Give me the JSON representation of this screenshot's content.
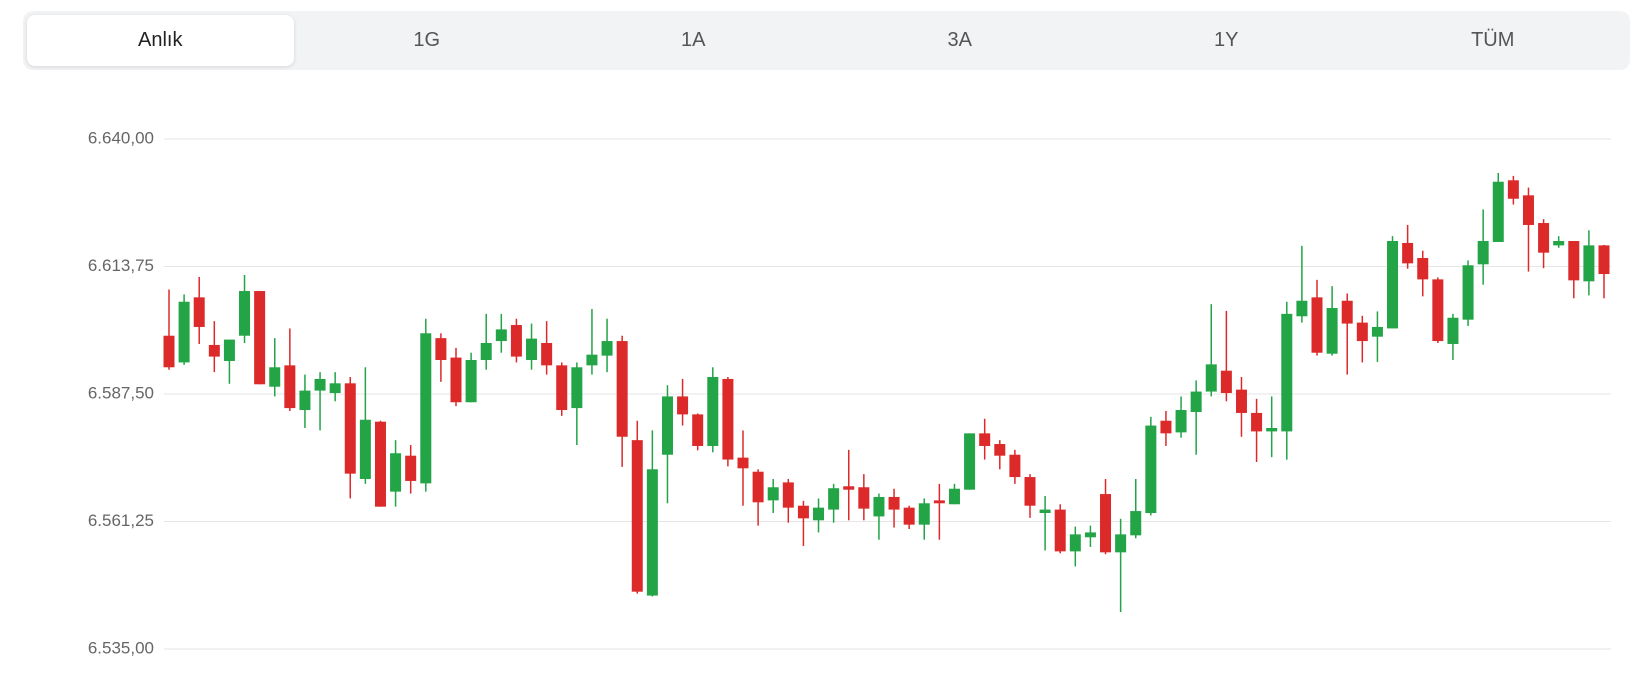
{
  "tabs": [
    "Anlık",
    "1G",
    "1A",
    "3A",
    "1Y",
    "TÜM"
  ],
  "active_tab": 0,
  "chart_data": {
    "type": "candlestick",
    "open": [
      6599.5,
      6594,
      6607.4,
      6597.6,
      6594.3,
      6599.5,
      6608.7,
      6589,
      6593.4,
      6584.2,
      6588.2,
      6587.7,
      6589.7,
      6570,
      6581.8,
      6567.4,
      6574.8,
      6569.1,
      6599,
      6595,
      6585.8,
      6594.5,
      6598.4,
      6601.7,
      6594.5,
      6598,
      6593.4,
      6584.6,
      6593.4,
      6595.4,
      6598.4,
      6578,
      6546,
      6575,
      6587,
      6583.3,
      6576.8,
      6590.6,
      6574.4,
      6571.5,
      6565.6,
      6569.3,
      6564.5,
      6561.5,
      6563.7,
      6568.5,
      6568.3,
      6562.3,
      6566.3,
      6564.1,
      6560.6,
      6565.6,
      6564.8,
      6567.8,
      6579.4,
      6577.2,
      6575,
      6570.4,
      6563,
      6563.7,
      6555.1,
      6558,
      6566.9,
      6554.9,
      6558.4,
      6563,
      6582,
      6579.6,
      6583.8,
      6588,
      6592.3,
      6588.4,
      6583.6,
      6579.8,
      6579.8,
      6603.5,
      6607.4,
      6595.8,
      6606.7,
      6602.2,
      6599.3,
      6601,
      6618.6,
      6615.5,
      6611.1,
      6597.8,
      6602.8,
      6614.2,
      6618.8,
      6631.5,
      6628.4,
      6622.7,
      6618.1,
      6619,
      6610.7,
      6618.1
    ],
    "high": [
      6609,
      6608,
      6611.6,
      6602.5,
      6598.7,
      6612,
      6608.7,
      6599,
      6601,
      6591.5,
      6592,
      6592,
      6591,
      6593,
      6582,
      6578,
      6577,
      6603,
      6600,
      6597,
      6596,
      6604,
      6604,
      6603,
      6602,
      6602.5,
      6594,
      6594,
      6605,
      6603,
      6599.5,
      6582,
      6580,
      6589.3,
      6590.6,
      6583.5,
      6593,
      6591,
      6580,
      6572,
      6570,
      6570,
      6565.5,
      6566,
      6569,
      6576,
      6571,
      6567,
      6568,
      6564.5,
      6566,
      6569,
      6569,
      6579.4,
      6582.4,
      6578,
      6576,
      6571,
      6566.5,
      6564.8,
      6560.2,
      6560.4,
      6570,
      6561.8,
      6570,
      6582.8,
      6584,
      6587,
      6590.3,
      6606,
      6604.6,
      6591,
      6586.5,
      6587,
      6606.5,
      6618,
      6611,
      6609.7,
      6608.2,
      6603.6,
      6604.5,
      6620,
      6622.3,
      6617,
      6611.5,
      6604,
      6615,
      6625.5,
      6633,
      6632.4,
      6630,
      6623.5,
      6620,
      6619,
      6621.2,
      6618.2
    ],
    "low": [
      6592.5,
      6593.5,
      6597.8,
      6592,
      6589.6,
      6598,
      6589.5,
      6587,
      6584,
      6580.5,
      6580,
      6586,
      6566,
      6569,
      6564.3,
      6564.3,
      6567,
      6567.4,
      6590,
      6585,
      6585.8,
      6592.5,
      6596,
      6594,
      6592.5,
      6591.5,
      6583,
      6577,
      6591.5,
      6592,
      6572.5,
      6546.4,
      6545.8,
      6565,
      6581,
      6575.9,
      6575.5,
      6572.6,
      6564.5,
      6560.4,
      6563,
      6561,
      6556.2,
      6559,
      6561,
      6561.5,
      6561.5,
      6557.5,
      6560,
      6559.7,
      6557.5,
      6557.5,
      6564.8,
      6567.8,
      6574,
      6572,
      6569,
      6562,
      6555.3,
      6554.7,
      6552,
      6556,
      6554.5,
      6542.6,
      6557.8,
      6562.5,
      6576.8,
      6578.5,
      6575,
      6587,
      6586,
      6578.7,
      6573.5,
      6574.5,
      6574,
      6602.2,
      6595.4,
      6595.4,
      6591.5,
      6594,
      6594.1,
      6601,
      6613.3,
      6607.6,
      6598,
      6594.5,
      6601.5,
      6610,
      6618.8,
      6626.5,
      6612.7,
      6613.4,
      6617.6,
      6607.2,
      6607.8,
      6607.2
    ],
    "close": [
      6593,
      6606.5,
      6601.3,
      6595.2,
      6598.7,
      6608.7,
      6589.5,
      6593,
      6584.6,
      6588.2,
      6590.6,
      6589.7,
      6571.1,
      6582.2,
      6564.3,
      6575.3,
      6569.6,
      6600,
      6594.5,
      6585.8,
      6594.5,
      6598,
      6600.8,
      6595.2,
      6598.9,
      6593.4,
      6584.2,
      6593,
      6595.6,
      6598.4,
      6578.7,
      6546.8,
      6572,
      6587,
      6583.3,
      6576.8,
      6591,
      6574,
      6572.2,
      6565.2,
      6568.3,
      6564.1,
      6561.9,
      6564.1,
      6568.1,
      6567.8,
      6563.9,
      6566.3,
      6563.7,
      6560.6,
      6565,
      6565,
      6568,
      6579.4,
      6576.8,
      6574.8,
      6570.4,
      6564.5,
      6563.7,
      6555.1,
      6558.6,
      6559,
      6554.9,
      6558.6,
      6563.4,
      6581,
      6579.4,
      6584.2,
      6588,
      6593.6,
      6587.7,
      6583.6,
      6579.8,
      6580.5,
      6604,
      6606.7,
      6596,
      6605.2,
      6602,
      6598.4,
      6601.3,
      6619,
      6614.4,
      6611.1,
      6598.4,
      6603.2,
      6614,
      6619,
      6631.2,
      6627.7,
      6622.3,
      6616.6,
      6619,
      6610.9,
      6618.1,
      6612.2
    ],
    "up_color": "#22a447",
    "down_color": "#dc2a2a",
    "ylim": [
      6535,
      6640
    ],
    "yticks": [
      {
        "value": 6640,
        "label": "6.640,00"
      },
      {
        "value": 6613.75,
        "label": "6.613,75"
      },
      {
        "value": 6587.5,
        "label": "6.587,50"
      },
      {
        "value": 6561.25,
        "label": "6.561,25"
      },
      {
        "value": 6535,
        "label": "6.535,00"
      }
    ],
    "grid": true
  }
}
